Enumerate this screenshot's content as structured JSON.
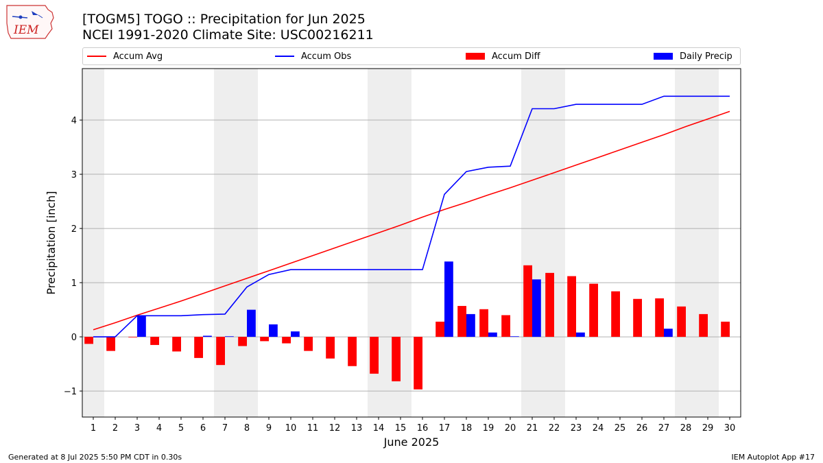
{
  "title_line1": "[TOGM5] TOGO :: Precipitation for Jun 2025",
  "title_line2": "NCEI 1991-2020 Climate Site: USC00216211",
  "logo_text": "IEM",
  "footer_left": "Generated at 8 Jul 2025 5:50 PM CDT in 0.30s",
  "footer_right": "IEM Autoplot App #17",
  "colors": {
    "accum_avg": "#ff0000",
    "accum_obs": "#0000ff",
    "accum_diff": "#ff0000",
    "daily_precip": "#0000ff",
    "weekend_shade": "#eeeeee",
    "grid": "#b0b0b0"
  },
  "legend": [
    {
      "label": "Accum Avg",
      "kind": "line",
      "color": "#ff0000"
    },
    {
      "label": "Accum Obs",
      "kind": "line",
      "color": "#0000ff"
    },
    {
      "label": "Accum Diff",
      "kind": "bar",
      "color": "#ff0000"
    },
    {
      "label": "Daily Precip",
      "kind": "bar",
      "color": "#0000ff"
    }
  ],
  "chart_data": {
    "type": "bar",
    "xlabel": "June 2025",
    "ylabel": "Precipitation [inch]",
    "ylim": [
      -1.48,
      4.95
    ],
    "yticks": [
      -1,
      0,
      1,
      2,
      3,
      4
    ],
    "ytick_labels": [
      "−1",
      "0",
      "1",
      "2",
      "3",
      "4"
    ],
    "xlim": [
      0.5,
      30.5
    ],
    "grid": "horizontal",
    "legend_position": "top",
    "weekend_shading": [
      [
        0.5,
        1.5
      ],
      [
        6.5,
        8.5
      ],
      [
        13.5,
        15.5
      ],
      [
        20.5,
        22.5
      ],
      [
        27.5,
        29.5
      ]
    ],
    "days": [
      1,
      2,
      3,
      4,
      5,
      6,
      7,
      8,
      9,
      10,
      11,
      12,
      13,
      14,
      15,
      16,
      17,
      18,
      19,
      20,
      21,
      22,
      23,
      24,
      25,
      26,
      27,
      28,
      29,
      30
    ],
    "day_labels": [
      "1",
      "2",
      "3",
      "4",
      "5",
      "6",
      "7",
      "8",
      "9",
      "10",
      "11",
      "12",
      "13",
      "14",
      "15",
      "16",
      "17",
      "18",
      "19",
      "20",
      "21",
      "22",
      "23",
      "24",
      "25",
      "26",
      "27",
      "28",
      "29",
      "30"
    ],
    "series": [
      {
        "name": "Accum Avg",
        "type": "line",
        "values": [
          0.13,
          0.26,
          0.4,
          0.53,
          0.66,
          0.8,
          0.94,
          1.08,
          1.22,
          1.36,
          1.5,
          1.64,
          1.78,
          1.92,
          2.06,
          2.21,
          2.35,
          2.48,
          2.62,
          2.75,
          2.89,
          3.03,
          3.17,
          3.31,
          3.45,
          3.59,
          3.73,
          3.88,
          4.02,
          4.16
        ]
      },
      {
        "name": "Accum Obs",
        "type": "line",
        "values": [
          0.0,
          0.0,
          0.39,
          0.39,
          0.39,
          0.41,
          0.42,
          0.92,
          1.15,
          1.24,
          1.24,
          1.24,
          1.24,
          1.24,
          1.24,
          1.24,
          2.63,
          3.05,
          3.13,
          3.15,
          4.21,
          4.21,
          4.29,
          4.29,
          4.29,
          4.29,
          4.44,
          4.44,
          4.44,
          4.44
        ]
      },
      {
        "name": "Accum Diff",
        "type": "bar",
        "values": [
          -0.13,
          -0.26,
          -0.01,
          -0.15,
          -0.27,
          -0.39,
          -0.52,
          -0.17,
          -0.08,
          -0.12,
          -0.26,
          -0.4,
          -0.54,
          -0.68,
          -0.82,
          -0.97,
          0.28,
          0.57,
          0.51,
          0.4,
          1.32,
          1.18,
          1.12,
          0.98,
          0.84,
          0.7,
          0.71,
          0.56,
          0.42,
          0.28
        ]
      },
      {
        "name": "Daily Precip",
        "type": "bar",
        "values": [
          0.0,
          0.0,
          0.39,
          0.0,
          0.0,
          0.02,
          0.01,
          0.5,
          0.23,
          0.1,
          0.0,
          0.0,
          0.0,
          0.0,
          0.0,
          0.0,
          1.39,
          0.42,
          0.08,
          0.01,
          1.06,
          0.0,
          0.08,
          0.0,
          0.0,
          0.0,
          0.15,
          0.0,
          0.0,
          0.0
        ]
      }
    ]
  }
}
